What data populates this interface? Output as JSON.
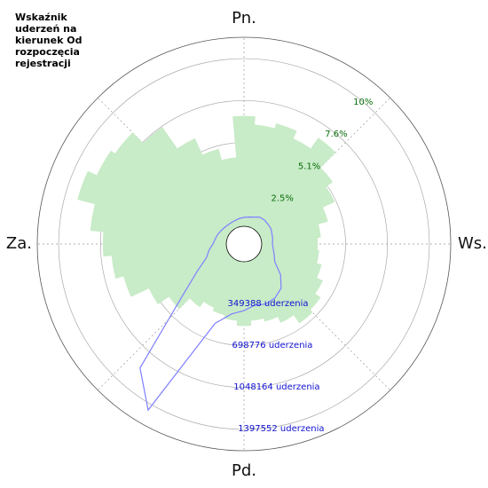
{
  "chart_data": {
    "type": "polar",
    "title": "Wskaźnik uderzeń na kierunek Od rozpoczęcia rejestracji",
    "direction_labels": [
      "Pn.",
      "Ws.",
      "Pd.",
      "Za."
    ],
    "x": [
      0,
      10,
      20,
      30,
      40,
      50,
      60,
      70,
      80,
      90,
      100,
      110,
      120,
      130,
      140,
      150,
      160,
      170,
      180,
      190,
      200,
      210,
      220,
      230,
      240,
      250,
      260,
      270,
      280,
      290,
      300,
      310,
      320,
      330,
      340,
      350
    ],
    "series": [
      {
        "type": "bar",
        "color": "#c8ebc8",
        "values": [
          6.7,
          6.2,
          6.5,
          6.0,
          6.8,
          5.5,
          5.0,
          4.2,
          3.6,
          3.4,
          3.5,
          3.8,
          4.2,
          4.6,
          4.8,
          4.2,
          3.8,
          3.6,
          3.9,
          3.6,
          3.4,
          3.2,
          3.6,
          4.5,
          5.3,
          6.5,
          7.0,
          7.5,
          8.3,
          9.4,
          8.8,
          8.5,
          7.6,
          6.0,
          4.9,
          4.2
        ]
      },
      {
        "type": "line",
        "axis": "r2",
        "color": "#8080ff",
        "values": [
          74000,
          80000,
          90000,
          111000,
          115000,
          111000,
          111000,
          100000,
          95000,
          89000,
          100000,
          120000,
          148000,
          250000,
          333000,
          370000,
          385000,
          370000,
          407000,
          444000,
          555000,
          1450000,
          1200000,
          520000,
          300000,
          185000,
          148000,
          111000,
          95000,
          85000,
          74000,
          65000,
          60000,
          59000,
          62000,
          68000
        ]
      }
    ],
    "rlim": [
      0,
      11.5
    ],
    "rticks": [
      {
        "value": 2.55,
        "label": "2.5%"
      },
      {
        "value": 5.1,
        "label": "5.1%"
      },
      {
        "value": 7.65,
        "label": "7.6%"
      },
      {
        "value": 10.2,
        "label": "10%"
      }
    ],
    "r2lim": [
      0,
      1575000
    ],
    "r2ticks": [
      {
        "value": 349388,
        "label": "349388 uderzenia"
      },
      {
        "value": 698776,
        "label": "698776 uderzenia"
      },
      {
        "value": 1048164,
        "label": "1048164 uderzenia"
      },
      {
        "value": 1397552,
        "label": "1397552 uderzenia"
      }
    ],
    "grid": true
  }
}
